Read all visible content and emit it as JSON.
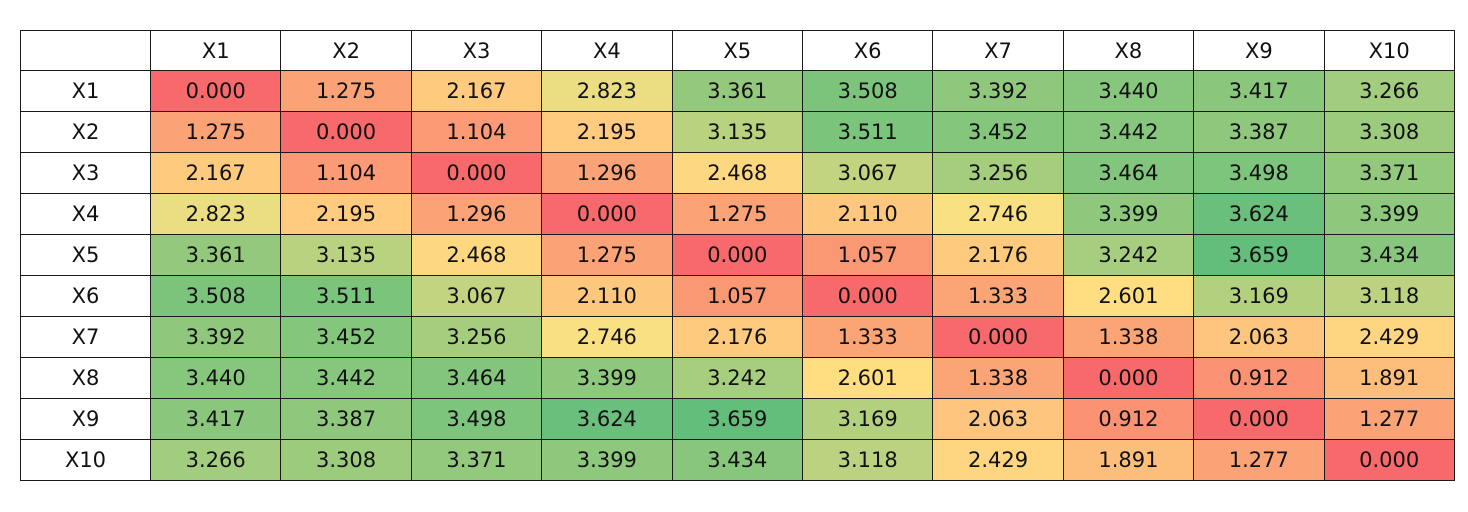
{
  "chart_data": {
    "type": "heatmap",
    "title": "",
    "xlabel": "",
    "ylabel": "",
    "columns": [
      "X1",
      "X2",
      "X3",
      "X4",
      "X5",
      "X6",
      "X7",
      "X8",
      "X9",
      "X10"
    ],
    "rows": [
      "X1",
      "X2",
      "X3",
      "X4",
      "X5",
      "X6",
      "X7",
      "X8",
      "X9",
      "X10"
    ],
    "values": [
      [
        "0.000",
        "1.275",
        "2.167",
        "2.823",
        "3.361",
        "3.508",
        "3.392",
        "3.440",
        "3.417",
        "3.266"
      ],
      [
        "1.275",
        "0.000",
        "1.104",
        "2.195",
        "3.135",
        "3.511",
        "3.452",
        "3.442",
        "3.387",
        "3.308"
      ],
      [
        "2.167",
        "1.104",
        "0.000",
        "1.296",
        "2.468",
        "3.067",
        "3.256",
        "3.464",
        "3.498",
        "3.371"
      ],
      [
        "2.823",
        "2.195",
        "1.296",
        "0.000",
        "1.275",
        "2.110",
        "2.746",
        "3.399",
        "3.624",
        "3.399"
      ],
      [
        "3.361",
        "3.135",
        "2.468",
        "1.275",
        "0.000",
        "1.057",
        "2.176",
        "3.242",
        "3.659",
        "3.434"
      ],
      [
        "3.508",
        "3.511",
        "3.067",
        "2.110",
        "1.057",
        "0.000",
        "1.333",
        "2.601",
        "3.169",
        "3.118"
      ],
      [
        "3.392",
        "3.452",
        "3.256",
        "2.746",
        "2.176",
        "1.333",
        "0.000",
        "1.338",
        "2.063",
        "2.429"
      ],
      [
        "3.440",
        "3.442",
        "3.464",
        "3.399",
        "3.242",
        "2.601",
        "1.338",
        "0.000",
        "0.912",
        "1.891"
      ],
      [
        "3.417",
        "3.387",
        "3.498",
        "3.624",
        "3.659",
        "3.169",
        "2.063",
        "0.912",
        "0.000",
        "1.277"
      ],
      [
        "3.266",
        "3.308",
        "3.371",
        "3.399",
        "3.434",
        "3.118",
        "2.429",
        "1.891",
        "1.277",
        "0.000"
      ]
    ],
    "color_scale": {
      "min_value": 0.0,
      "mid_value": 2.7,
      "max_value": 3.66,
      "min_color": "#f8696b",
      "mid_color": "#ffe283",
      "max_color": "#63be7b"
    }
  }
}
